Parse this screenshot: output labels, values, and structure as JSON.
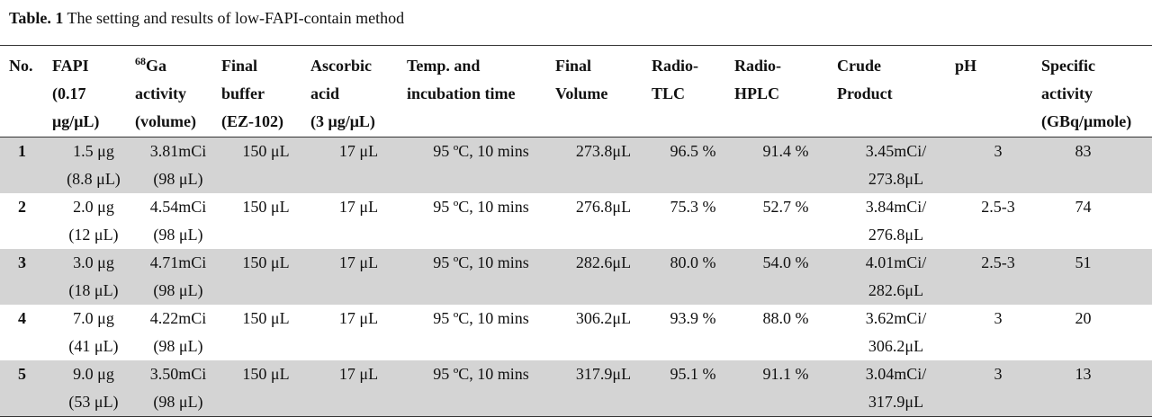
{
  "caption": {
    "label": "Table. 1",
    "text": " The setting and results of low-FAPI-contain method"
  },
  "table": {
    "header": [
      [
        "No."
      ],
      [
        "FAPI",
        "(0.17",
        "μg/μL)"
      ],
      {
        "sup": "68",
        "lines": [
          "Ga",
          "activity",
          "(volume)"
        ]
      },
      [
        "Final",
        "buffer",
        "(EZ-102)"
      ],
      [
        "Ascorbic",
        "acid",
        "(3 μg/μL)"
      ],
      [
        "Temp. and",
        "incubation time"
      ],
      [
        "Final",
        "Volume"
      ],
      [
        "Radio-",
        "TLC"
      ],
      [
        "Radio-",
        "HPLC"
      ],
      [
        "Crude",
        "Product"
      ],
      [
        "pH"
      ],
      [
        "Specific",
        "activity",
        "(GBq/μmole)"
      ]
    ],
    "rows": [
      [
        [
          "1"
        ],
        [
          "1.5 μg",
          "(8.8 μL)"
        ],
        [
          "3.81mCi",
          "(98 μL)"
        ],
        [
          "150 μL"
        ],
        [
          "17 μL"
        ],
        [
          "95 ºC, 10 mins"
        ],
        [
          "273.8μL"
        ],
        [
          "96.5 %"
        ],
        [
          "91.4 %"
        ],
        [
          "3.45mCi/",
          "273.8μL"
        ],
        [
          "3"
        ],
        [
          "83"
        ]
      ],
      [
        [
          "2"
        ],
        [
          "2.0 μg",
          "(12 μL)"
        ],
        [
          "4.54mCi",
          "(98 μL)"
        ],
        [
          "150 μL"
        ],
        [
          "17 μL"
        ],
        [
          "95 ºC, 10 mins"
        ],
        [
          "276.8μL"
        ],
        [
          "75.3 %"
        ],
        [
          "52.7 %"
        ],
        [
          "3.84mCi/",
          "276.8μL"
        ],
        [
          "2.5-3"
        ],
        [
          "74"
        ]
      ],
      [
        [
          "3"
        ],
        [
          "3.0 μg",
          "(18 μL)"
        ],
        [
          "4.71mCi",
          "(98 μL)"
        ],
        [
          "150 μL"
        ],
        [
          "17 μL"
        ],
        [
          "95 ºC, 10 mins"
        ],
        [
          "282.6μL"
        ],
        [
          "80.0 %"
        ],
        [
          "54.0 %"
        ],
        [
          "4.01mCi/",
          "282.6μL"
        ],
        [
          "2.5-3"
        ],
        [
          "51"
        ]
      ],
      [
        [
          "4"
        ],
        [
          "7.0 μg",
          "(41 μL)"
        ],
        [
          "4.22mCi",
          "(98 μL)"
        ],
        [
          "150 μL"
        ],
        [
          "17 μL"
        ],
        [
          "95 ºC, 10 mins"
        ],
        [
          "306.2μL"
        ],
        [
          "93.9 %"
        ],
        [
          "88.0 %"
        ],
        [
          "3.62mCi/",
          "306.2μL"
        ],
        [
          "3"
        ],
        [
          "20"
        ]
      ],
      [
        [
          "5"
        ],
        [
          "9.0 μg",
          "(53 μL)"
        ],
        [
          "3.50mCi",
          "(98 μL)"
        ],
        [
          "150 μL"
        ],
        [
          "17 μL"
        ],
        [
          "95 ºC, 10 mins"
        ],
        [
          "317.9μL"
        ],
        [
          "95.1 %"
        ],
        [
          "91.1 %"
        ],
        [
          "3.04mCi/",
          "317.9μL"
        ],
        [
          "3"
        ],
        [
          "13"
        ]
      ]
    ]
  }
}
